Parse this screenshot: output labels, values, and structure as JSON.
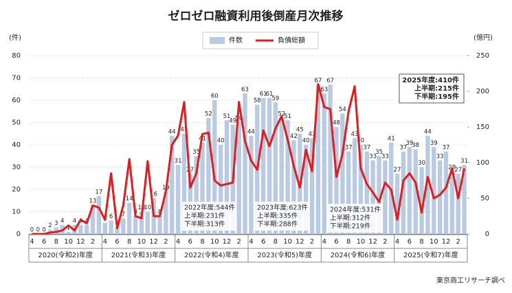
{
  "chart_data": {
    "type": "bar-line",
    "title": "ゼロゼロ融資利用後倒産月次推移",
    "y_label": "(件)",
    "y2_label": "(億円)",
    "source": "東京商工リサーチ調べ",
    "categories": [
      "4",
      null,
      "6",
      null,
      "8",
      null,
      "10",
      null,
      "12",
      null,
      "2",
      null,
      "4",
      null,
      "6",
      null,
      "8",
      null,
      "10",
      null,
      "12",
      null,
      "2",
      null,
      "4",
      null,
      "6",
      null,
      "8",
      null,
      "10",
      null,
      "12",
      null,
      "2",
      null,
      "4",
      null,
      "6",
      null,
      "8",
      null,
      "10",
      null,
      "12",
      null,
      "2",
      null,
      "4",
      null,
      "6",
      null,
      "8",
      null,
      "10",
      null,
      "12",
      null,
      "2",
      null,
      "4",
      null,
      "6",
      null,
      "8",
      null,
      "10",
      null,
      "12",
      null,
      "2",
      null
    ],
    "fiscal_years": [
      "2020(令和2)年度",
      "2021(令和3)年度",
      "2022(令和4)年度",
      "2023(令和5)年度",
      "2024(令和6)年度",
      "2025(令和7)年度"
    ],
    "series": [
      {
        "name": "件数",
        "color": "#b9cbe2",
        "axis": "y",
        "values": [
          0,
          0,
          0,
          2,
          3,
          4,
          1,
          4,
          4,
          4,
          13,
          17,
          5,
          6,
          3,
          7,
          14,
          8,
          10,
          10,
          16,
          8,
          19,
          44,
          31,
          45,
          27,
          35,
          41,
          52,
          60,
          40,
          51,
          49,
          50,
          63,
          44,
          58,
          61,
          61,
          59,
          52,
          51,
          42,
          45,
          40,
          43,
          67,
          63,
          67,
          48,
          54,
          37,
          43,
          40,
          37,
          33,
          35,
          33,
          41,
          27,
          37,
          39,
          38,
          30,
          44,
          39,
          33,
          37,
          28,
          27,
          31
        ]
      },
      {
        "name": "負債総額",
        "color": "#e41a1c",
        "axis": "y2",
        "values": [
          0,
          0,
          0,
          2,
          3,
          5,
          12,
          5,
          20,
          15,
          40,
          37,
          20,
          85,
          8,
          40,
          105,
          25,
          22,
          102,
          25,
          25,
          60,
          125,
          138,
          185,
          65,
          85,
          140,
          142,
          75,
          68,
          70,
          72,
          185,
          130,
          103,
          90,
          145,
          123,
          148,
          165,
          132,
          95,
          65,
          118,
          88,
          210,
          178,
          175,
          80,
          112,
          172,
          207,
          92,
          70,
          58,
          45,
          72,
          62,
          20,
          75,
          85,
          72,
          30,
          80,
          50,
          55,
          65,
          92,
          50,
          92
        ]
      }
    ],
    "ylim": [
      0,
      80
    ],
    "yticks": [
      0,
      10,
      20,
      30,
      40,
      50,
      60,
      70,
      80
    ],
    "y2lim": [
      0,
      250
    ],
    "y2ticks": [
      0,
      50,
      100,
      150,
      200,
      250
    ],
    "grid": true,
    "legend": "top",
    "annotations": [
      {
        "lines": [
          "2022年度:544件",
          "上半期:231件",
          "下半期:313件"
        ]
      },
      {
        "lines": [
          "2023年度:623件",
          "上半期:335件",
          "下半期:288件"
        ]
      },
      {
        "lines": [
          "2024年度:531件",
          "上半期:312件",
          "下半期:219件"
        ]
      },
      {
        "lines": [
          "2025年度:410件",
          "上半期:215件",
          "下半期:195件"
        ]
      }
    ]
  }
}
